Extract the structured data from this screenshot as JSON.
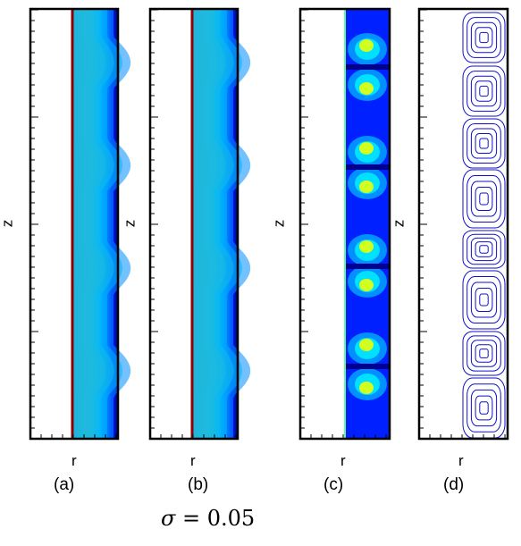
{
  "figure": {
    "panels": [
      {
        "id": "a",
        "caption": "(a)",
        "rlabel": "r",
        "zlabel": "z",
        "kind": "contour"
      },
      {
        "id": "b",
        "caption": "(b)",
        "rlabel": "r",
        "zlabel": "z",
        "kind": "contour"
      },
      {
        "id": "c",
        "caption": "(c)",
        "rlabel": "r",
        "zlabel": "z",
        "kind": "cells"
      },
      {
        "id": "d",
        "caption": "(d)",
        "rlabel": "r",
        "zlabel": "z",
        "kind": "streamlines"
      }
    ],
    "formula": {
      "symbol": "σ",
      "rest": " = 0.05"
    },
    "colors": {
      "frame": "#000000",
      "streamline": "#1010c8",
      "jet": [
        "#00008f",
        "#0020ff",
        "#0090ff",
        "#00e0ff",
        "#60ff90",
        "#d0ff20",
        "#ffd000",
        "#ff7000",
        "#e01000",
        "#800000"
      ]
    }
  }
}
